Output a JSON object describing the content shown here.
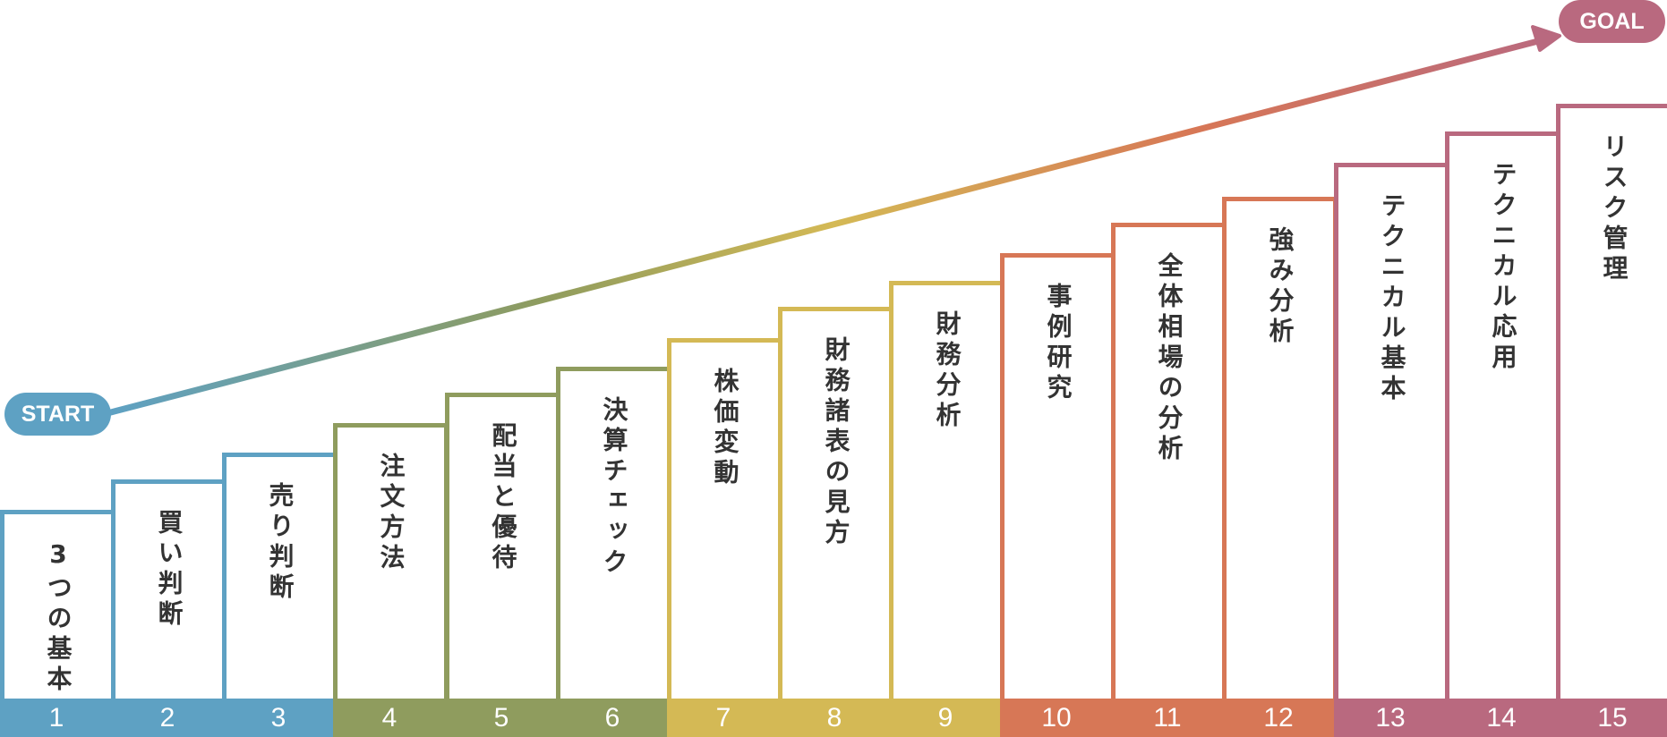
{
  "start_label": "START",
  "goal_label": "GOAL",
  "colors": {
    "blue": "#5ea1c3",
    "olive": "#8f9c5e",
    "yellow": "#d4b955",
    "orange": "#d77756",
    "pink": "#b9697f"
  },
  "steps": [
    {
      "number": "1",
      "label": "3つの基本",
      "group": "blue"
    },
    {
      "number": "2",
      "label": "買い判断",
      "group": "blue"
    },
    {
      "number": "3",
      "label": "売り判断",
      "group": "blue"
    },
    {
      "number": "4",
      "label": "注文方法",
      "group": "olive"
    },
    {
      "number": "5",
      "label": "配当と優待",
      "group": "olive"
    },
    {
      "number": "6",
      "label": "決算チェック",
      "group": "olive"
    },
    {
      "number": "7",
      "label": "株価変動",
      "group": "yellow"
    },
    {
      "number": "8",
      "label": "財務諸表の見方",
      "group": "yellow"
    },
    {
      "number": "9",
      "label": "財務分析",
      "group": "yellow"
    },
    {
      "number": "10",
      "label": "事例研究",
      "group": "orange"
    },
    {
      "number": "11",
      "label": "全体相場の分析",
      "group": "orange"
    },
    {
      "number": "12",
      "label": "強み分析",
      "group": "orange"
    },
    {
      "number": "13",
      "label": "テクニカル基本",
      "group": "pink"
    },
    {
      "number": "14",
      "label": "テクニカル応用",
      "group": "pink"
    },
    {
      "number": "15",
      "label": "リスク管理",
      "group": "pink"
    }
  ]
}
